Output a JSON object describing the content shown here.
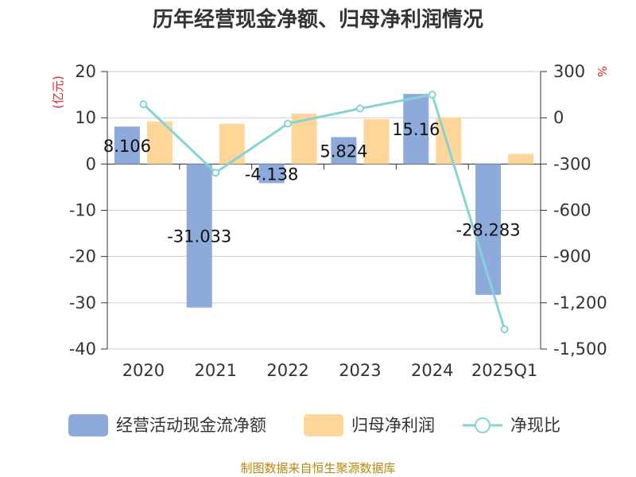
{
  "title": "历年经营现金净额、归母净利润情况",
  "source": "制图数据来自恒生聚源数据库",
  "chart_data": {
    "type": "bar+line",
    "categories": [
      "2020",
      "2021",
      "2022",
      "2023",
      "2024",
      "2025Q1"
    ],
    "series": [
      {
        "name": "经营活动现金流净额",
        "type": "bar",
        "axis": "left",
        "color": "#8eaadb",
        "values": [
          8.106,
          -31.033,
          -4.138,
          5.824,
          15.16,
          -28.283
        ],
        "labels": [
          "8.106",
          "-31.033",
          "-4.138",
          "5.824",
          "15.16",
          "-28.283"
        ]
      },
      {
        "name": "归母净利润",
        "type": "bar",
        "axis": "left",
        "color": "#ffd699",
        "values": [
          9.2,
          8.7,
          10.9,
          9.7,
          10.1,
          2.2
        ]
      },
      {
        "name": "净现比",
        "type": "line",
        "axis": "right",
        "color": "#86d3d6",
        "values": [
          88,
          -356,
          -38,
          60,
          150,
          -1372
        ]
      }
    ],
    "y_left": {
      "label": "(亿元)",
      "min": -40,
      "max": 20,
      "ticks": [
        20,
        10,
        0,
        -10,
        -20,
        -30,
        -40
      ],
      "tick_labels": [
        "20",
        "10",
        "0",
        "-10",
        "-20",
        "-30",
        "-40"
      ]
    },
    "y_right": {
      "label": "%",
      "min": -1500,
      "max": 300,
      "ticks": [
        300,
        0,
        -300,
        -600,
        -900,
        -1200,
        -1500
      ],
      "tick_labels": [
        "300",
        "0",
        "-300",
        "-600",
        "-900",
        "-1,200",
        "-1,500"
      ]
    },
    "grid": true,
    "legend_position": "bottom"
  }
}
